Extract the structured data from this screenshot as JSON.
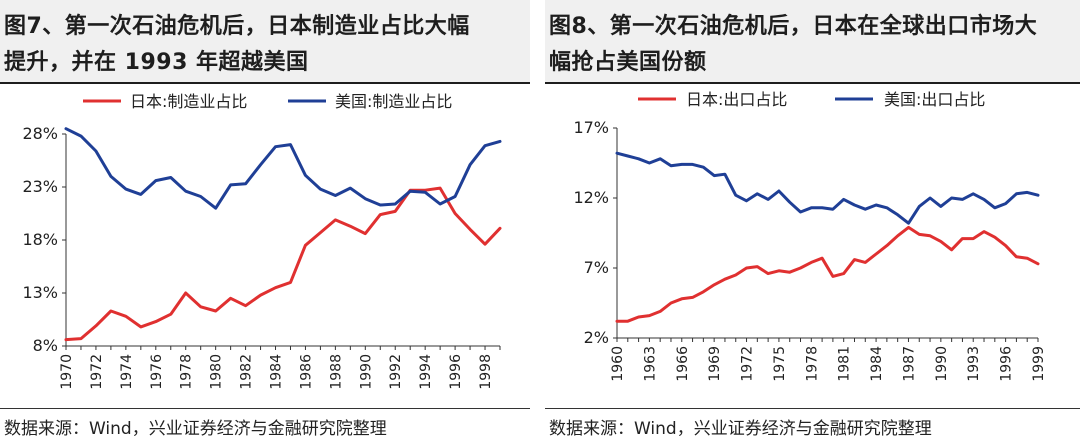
{
  "left": {
    "title_line1": "图7、第一次石油危机后，日本制造业占比大幅",
    "title_line2": "提升，并在 1993 年超越美国",
    "source": "数据来源：Wind，兴业证券经济与金融研究院整理"
  },
  "right": {
    "title_line1": "图8、第一次石油危机后，日本在全球出口市场大",
    "title_line2": "幅抢占美国份额",
    "source": "数据来源：Wind，兴业证券经济与金融研究院整理"
  },
  "colors": {
    "japan": "#e03030",
    "usa": "#1f3f96"
  },
  "chart_data": [
    {
      "type": "line",
      "x": [
        1970,
        1971,
        1972,
        1973,
        1974,
        1975,
        1976,
        1977,
        1978,
        1979,
        1980,
        1981,
        1982,
        1983,
        1984,
        1985,
        1986,
        1987,
        1988,
        1989,
        1990,
        1991,
        1992,
        1993,
        1994,
        1995,
        1996,
        1997,
        1998,
        1999
      ],
      "x_tick_labels": [
        "1970",
        "1972",
        "1974",
        "1976",
        "1978",
        "1980",
        "1982",
        "1984",
        "1986",
        "1988",
        "1990",
        "1992",
        "1994",
        "1996",
        "1998"
      ],
      "y_tick_labels": [
        "8%",
        "13%",
        "18%",
        "23%",
        "28%"
      ],
      "ylim": [
        8,
        28
      ],
      "legend_position": "top",
      "series": [
        {
          "name": "日本:制造业占比",
          "color_key": "japan",
          "values": [
            8.6,
            8.7,
            9.9,
            11.3,
            10.8,
            9.8,
            10.3,
            11.0,
            13.0,
            11.7,
            11.3,
            12.5,
            11.8,
            12.8,
            13.5,
            14.0,
            17.5,
            18.7,
            19.9,
            19.3,
            18.6,
            20.4,
            20.7,
            22.7,
            22.7,
            22.9,
            20.5,
            19.0,
            17.6,
            19.1
          ]
        },
        {
          "name": "美国:制造业占比",
          "color_key": "usa",
          "values": [
            28.5,
            27.8,
            26.4,
            24.0,
            22.8,
            22.3,
            23.6,
            23.9,
            22.6,
            22.1,
            21.0,
            23.2,
            23.3,
            25.1,
            26.8,
            27.0,
            24.1,
            22.8,
            22.2,
            22.9,
            21.9,
            21.3,
            21.4,
            22.6,
            22.5,
            21.4,
            22.1,
            25.1,
            26.9,
            27.3
          ]
        }
      ]
    },
    {
      "type": "line",
      "x": [
        1960,
        1961,
        1962,
        1963,
        1964,
        1965,
        1966,
        1967,
        1968,
        1969,
        1970,
        1971,
        1972,
        1973,
        1974,
        1975,
        1976,
        1977,
        1978,
        1979,
        1980,
        1981,
        1982,
        1983,
        1984,
        1985,
        1986,
        1987,
        1988,
        1989,
        1990,
        1991,
        1992,
        1993,
        1994,
        1995,
        1996,
        1997,
        1998,
        1999
      ],
      "x_tick_labels": [
        "1960",
        "1963",
        "1966",
        "1969",
        "1972",
        "1975",
        "1978",
        "1981",
        "1984",
        "1987",
        "1990",
        "1993",
        "1996",
        "1999"
      ],
      "y_tick_labels": [
        "2%",
        "7%",
        "12%",
        "17%"
      ],
      "ylim": [
        2,
        17
      ],
      "legend_position": "top",
      "series": [
        {
          "name": "日本:出口占比",
          "color_key": "japan",
          "values": [
            3.2,
            3.2,
            3.5,
            3.6,
            3.9,
            4.5,
            4.8,
            4.9,
            5.3,
            5.8,
            6.2,
            6.5,
            7.0,
            7.1,
            6.6,
            6.8,
            6.7,
            7.0,
            7.4,
            7.7,
            6.4,
            6.6,
            7.6,
            7.4,
            8.0,
            8.6,
            9.3,
            9.9,
            9.4,
            9.3,
            8.9,
            8.3,
            9.1,
            9.1,
            9.6,
            9.2,
            8.6,
            7.8,
            7.7,
            7.3
          ]
        },
        {
          "name": "美国:出口占比",
          "color_key": "usa",
          "values": [
            15.2,
            15.0,
            14.8,
            14.5,
            14.8,
            14.3,
            14.4,
            14.4,
            14.2,
            13.6,
            13.7,
            12.2,
            11.8,
            12.3,
            11.9,
            12.5,
            11.7,
            11.0,
            11.3,
            11.3,
            11.2,
            11.9,
            11.5,
            11.2,
            11.5,
            11.3,
            10.8,
            10.2,
            11.4,
            12.0,
            11.4,
            12.0,
            11.9,
            12.3,
            11.9,
            11.3,
            11.6,
            12.3,
            12.4,
            12.2
          ]
        }
      ]
    }
  ]
}
